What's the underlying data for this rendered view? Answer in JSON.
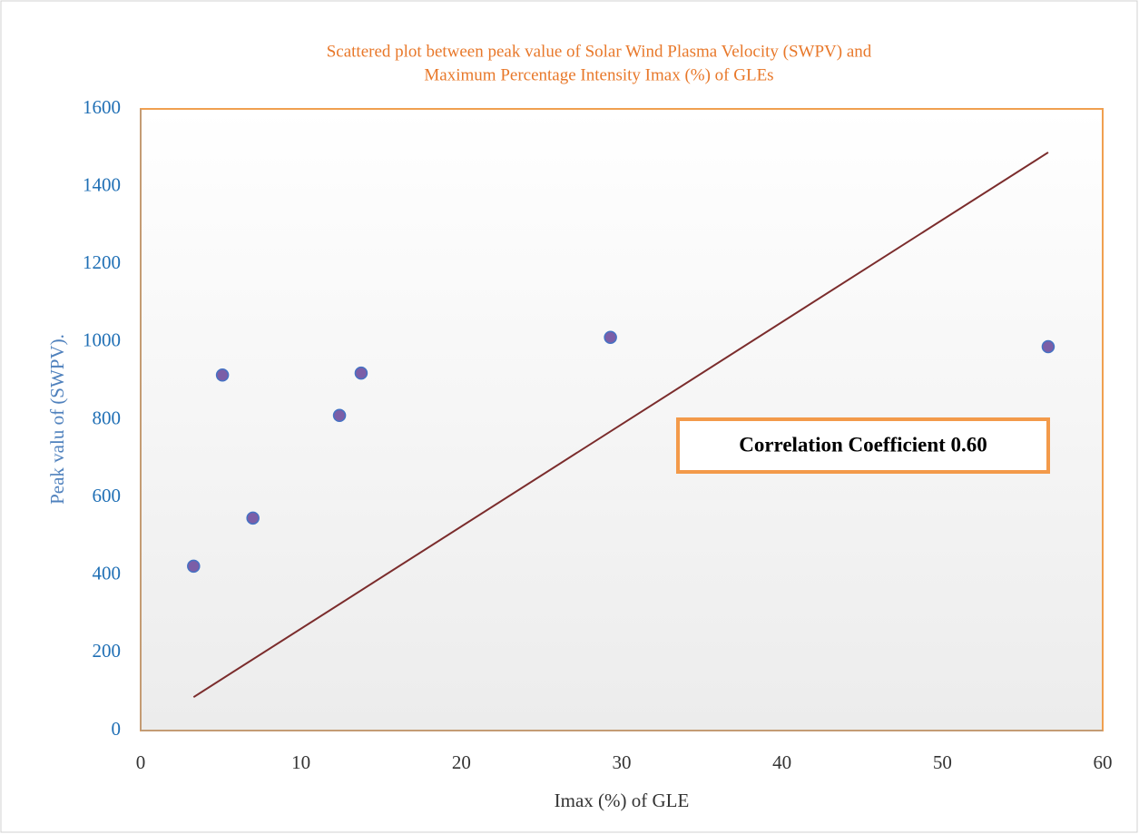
{
  "chart_data": {
    "type": "scatter",
    "title": [
      "Scattered plot between peak value of Solar Wind Plasma Velocity (SWPV) and",
      "Maximum Percentage Intensity Imax (%) of GLEs"
    ],
    "x_label": "Imax (%) of GLE",
    "y_label": "Peak valu of (SWPV).",
    "series": [
      {
        "color": "#7b5ea7",
        "x": [
          3.3,
          5.1,
          7.0,
          12.4,
          13.75,
          29.3,
          56.6
        ],
        "values": [
          423,
          915,
          547,
          811,
          920,
          1012,
          988
        ]
      }
    ],
    "trendline": {
      "color": "#7b2c2c",
      "x": [
        3.3,
        56.6
      ],
      "values": [
        86,
        1488
      ]
    },
    "annotation": "Correlation Coefficient 0.60",
    "xlim": [
      0,
      60
    ],
    "xticks": [
      0,
      10,
      20,
      30,
      40,
      50,
      60
    ],
    "ylim": [
      0,
      1600
    ],
    "yticks": [
      0,
      200,
      400,
      600,
      800,
      1000,
      1200,
      1400,
      1600
    ],
    "grid": false
  }
}
